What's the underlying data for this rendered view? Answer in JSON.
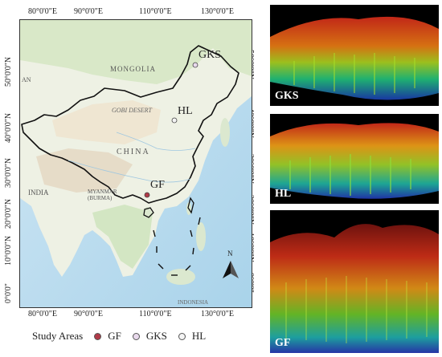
{
  "top_lon_labels": [
    "80°0'0\"E",
    "90°0'0\"E",
    "110°0'0\"E",
    "130°0'0\"E"
  ],
  "bottom_lon_labels": [
    "80°0'0\"E",
    "90°0'0\"E",
    "110°0'0\"E",
    "130°0'0\"E"
  ],
  "left_lat_labels": [
    "50°0'0\"N",
    "40°0'0\"N",
    "30°0'0\"N",
    "20°0'0\"N",
    "10°0'0\"N",
    "0°0'0\""
  ],
  "right_lat_labels": [
    "50°0'0\"N",
    "40°0'0\"N",
    "30°0'0\"N",
    "20°0'0\"N",
    "10°0'0\"N",
    "0°0'0\""
  ],
  "map_labels": {
    "mongolia": "MONGOLIA",
    "gobi": "GOBI DESERT",
    "china": "CHINA",
    "india": "INDIA",
    "myanmar": "MYANMAR\n(BURMA)",
    "indo": "INDONESIA",
    "an": "AN"
  },
  "sites": [
    {
      "code": "GKS",
      "color": "#e8d9ec"
    },
    {
      "code": "HL",
      "color": "#f4f4f4"
    },
    {
      "code": "GF",
      "color": "#b03a48"
    }
  ],
  "north_label": "N",
  "panels": [
    {
      "label": "GKS"
    },
    {
      "label": "HL"
    },
    {
      "label": "GF"
    }
  ],
  "legend": {
    "title": "Study Areas",
    "items": [
      {
        "label": "GF",
        "color": "#b03a48"
      },
      {
        "label": "GKS",
        "color": "#e8d9ec"
      },
      {
        "label": "HL",
        "color": "#f4f4f4"
      }
    ]
  }
}
